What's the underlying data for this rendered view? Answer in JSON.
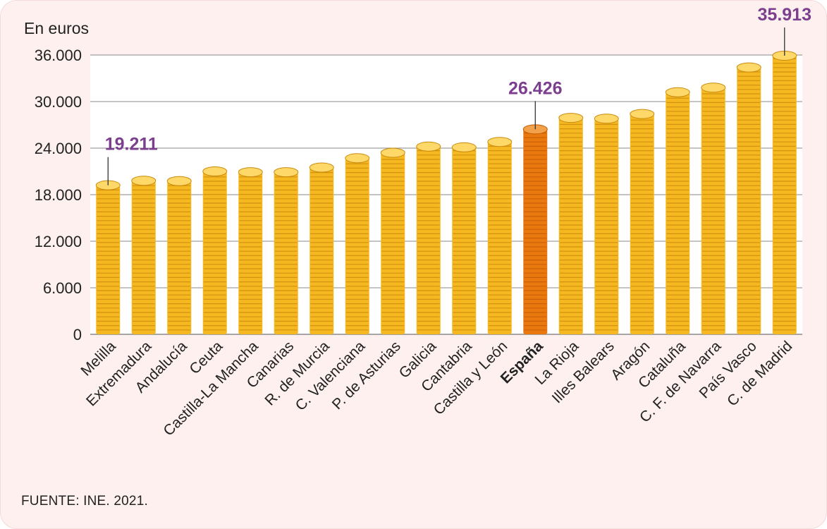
{
  "chart_data": {
    "type": "bar",
    "unit_label": "En euros",
    "categories": [
      "Melilla",
      "Extremadura",
      "Andalucía",
      "Ceuta",
      "Castilla-La Mancha",
      "Canarias",
      "R. de Murcia",
      "C. Valenciana",
      "P. de Asturias",
      "Galicia",
      "Cantabria",
      "Castilla y León",
      "España",
      "La Rioja",
      "Illes Balears",
      "Aragón",
      "Cataluña",
      "C. F. de Navarra",
      "País Vasco",
      "C. de Madrid"
    ],
    "values": [
      19211,
      19800,
      19750,
      21000,
      20900,
      20900,
      21500,
      22700,
      23400,
      24200,
      24100,
      24800,
      26426,
      27900,
      27800,
      28400,
      31200,
      31800,
      34400,
      35913
    ],
    "highlight_category": "España",
    "ylim": [
      0,
      36000
    ],
    "yticks": [
      "0",
      "6.000",
      "12.000",
      "18.000",
      "24.000",
      "30.000",
      "36.000"
    ],
    "ytick_values": [
      0,
      6000,
      12000,
      18000,
      24000,
      30000,
      36000
    ],
    "annotations": [
      {
        "category": "Melilla",
        "text": "19.211"
      },
      {
        "category": "España",
        "text": "26.426"
      },
      {
        "category": "C. de Madrid",
        "text": "35.913"
      }
    ],
    "grid": true,
    "colors": {
      "bar": "#f6b820",
      "bar_highlight": "#e9790f",
      "annotation": "#7b3f8e",
      "grid": "#8a8a8a"
    }
  },
  "source": "FUENTE: INE. 2021."
}
